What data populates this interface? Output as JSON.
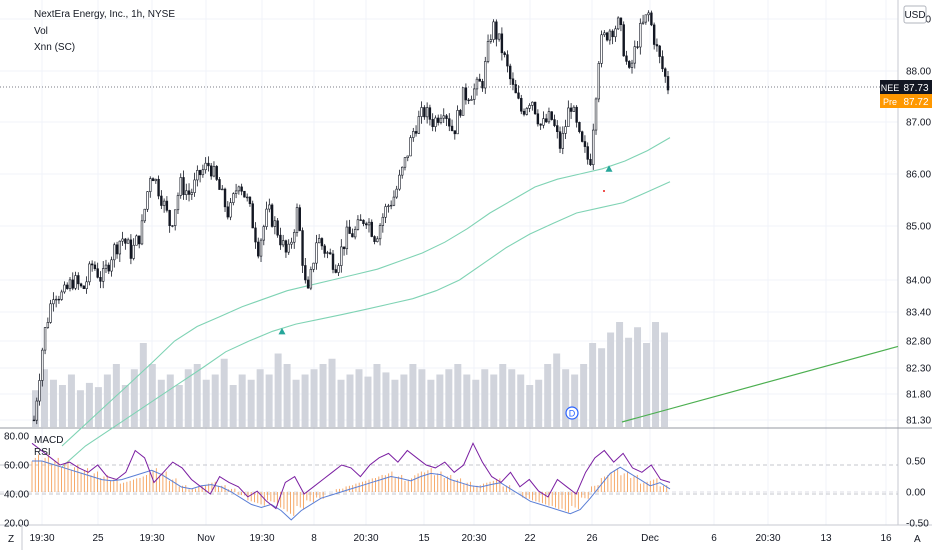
{
  "symbol": {
    "title": "NextEra Energy, Inc., 1h, NYSE",
    "indicator_1": "Vol",
    "indicator_2": "Xnn (SC)",
    "currency": "USD"
  },
  "price_labels": {
    "last_tag": "NEE",
    "last_value": "87.73",
    "pre_tag": "Pre",
    "pre_value": "87.72"
  },
  "sub_pane": {
    "label_1": "MACD",
    "label_2": "RSI",
    "left_ticks": [
      "80.00",
      "60.00",
      "40.00",
      "20.00"
    ],
    "right_ticks": [
      "0.50",
      "0.00",
      "-0.50"
    ]
  },
  "badges": {
    "dividend": "D",
    "z_button": "Z",
    "a_button": "A"
  },
  "colors": {
    "candle": "#131722",
    "ma": "#7fd3b4",
    "trendline": "#4caf50",
    "macd_hist": "#f5a05a",
    "macd_line": "#5b7fd6",
    "rsi_line": "#7b1fa2",
    "pre_tag": "#ff9800",
    "last_tag": "#131722",
    "volume": "#d1d4dc",
    "signal": "#26a69a"
  },
  "chart_data": {
    "type": "candlestick",
    "y_axis_ticks": [
      "89.00",
      "88.00",
      "87.00",
      "86.00",
      "85.00",
      "84.00",
      "83.40",
      "82.80",
      "82.30",
      "81.80",
      "81.30"
    ],
    "ylim": [
      81.3,
      89.3
    ],
    "x_axis_ticks": [
      "19:30",
      "25",
      "19:30",
      "Nov",
      "19:30",
      "8",
      "20:30",
      "15",
      "20:30",
      "22",
      "26",
      "Dec",
      "6",
      "20:30",
      "13",
      "16"
    ],
    "last_price": 87.73,
    "pre_market_price": 87.72,
    "close_path": [
      81.3,
      82.9,
      83.8,
      83.7,
      84.0,
      83.8,
      84.3,
      84.0,
      84.5,
      84.8,
      84.5,
      84.9,
      86.1,
      85.6,
      85.0,
      85.8,
      85.6,
      86.0,
      86.2,
      85.7,
      85.2,
      85.9,
      85.4,
      84.6,
      85.3,
      84.9,
      84.4,
      85.3,
      83.6,
      84.8,
      84.5,
      84.3,
      84.8,
      84.9,
      85.2,
      84.8,
      85.3,
      85.6,
      86.2,
      86.9,
      87.2,
      87.0,
      87.3,
      86.8,
      87.5,
      87.6,
      87.8,
      88.9,
      88.4,
      87.7,
      87.2,
      87.5,
      86.9,
      87.1,
      86.5,
      87.4,
      86.6,
      86.2,
      88.5,
      88.8,
      88.9,
      87.9,
      88.7,
      89.1,
      88.3,
      87.7
    ],
    "ma_fast": [
      80.8,
      81.2,
      81.6,
      82.0,
      82.4,
      82.8,
      83.1,
      83.3,
      83.5,
      83.65,
      83.8,
      83.9,
      84.0,
      84.1,
      84.2,
      84.35,
      84.5,
      84.7,
      84.95,
      85.25,
      85.5,
      85.75,
      85.9,
      86.0,
      86.1,
      86.25,
      86.45,
      86.7
    ],
    "ma_slow": [
      80.4,
      80.8,
      81.1,
      81.4,
      81.7,
      82.0,
      82.3,
      82.6,
      82.8,
      83.0,
      83.15,
      83.25,
      83.35,
      83.45,
      83.55,
      83.65,
      83.8,
      84.0,
      84.3,
      84.6,
      84.85,
      85.05,
      85.25,
      85.35,
      85.45,
      85.65,
      85.85
    ],
    "trendline": {
      "from": 81.3,
      "to": 82.7
    },
    "signals_up": [
      83.0,
      86.1
    ],
    "volume": [
      0.35,
      0.55,
      0.45,
      0.4,
      0.5,
      0.35,
      0.42,
      0.38,
      0.5,
      0.6,
      0.4,
      0.55,
      0.8,
      0.6,
      0.45,
      0.5,
      0.4,
      0.55,
      0.6,
      0.45,
      0.5,
      0.65,
      0.4,
      0.5,
      0.45,
      0.55,
      0.5,
      0.7,
      0.6,
      0.45,
      0.5,
      0.55,
      0.6,
      0.65,
      0.45,
      0.5,
      0.55,
      0.48,
      0.6,
      0.52,
      0.45,
      0.5,
      0.6,
      0.55,
      0.45,
      0.5,
      0.55,
      0.6,
      0.5,
      0.45,
      0.55,
      0.5,
      0.6,
      0.55,
      0.5,
      0.4,
      0.45,
      0.6,
      0.7,
      0.55,
      0.5,
      0.6,
      0.8,
      0.75,
      0.9,
      1.0,
      0.85,
      0.95,
      0.8,
      1.0,
      0.9
    ],
    "macd_hist": [
      0.55,
      0.55,
      0.5,
      0.45,
      0.4,
      0.35,
      0.3,
      0.25,
      0.2,
      0.15,
      0.2,
      0.25,
      0.35,
      0.3,
      0.2,
      0.1,
      0.05,
      0.1,
      0.15,
      0.1,
      0.05,
      -0.05,
      -0.15,
      -0.2,
      -0.15,
      -0.25,
      -0.35,
      -0.25,
      -0.15,
      -0.1,
      0.0,
      0.05,
      0.1,
      0.15,
      0.2,
      0.25,
      0.3,
      0.25,
      0.2,
      0.3,
      0.35,
      0.3,
      0.25,
      0.2,
      0.15,
      0.1,
      0.15,
      0.2,
      0.1,
      0.0,
      -0.1,
      -0.15,
      -0.2,
      -0.25,
      -0.3,
      -0.25,
      -0.1,
      0.1,
      0.25,
      0.35,
      0.3,
      0.25,
      0.15,
      0.2,
      0.1
    ],
    "macd_line": [
      0.5,
      0.5,
      0.45,
      0.4,
      0.35,
      0.3,
      0.25,
      0.2,
      0.18,
      0.2,
      0.25,
      0.3,
      0.35,
      0.28,
      0.18,
      0.08,
      0.05,
      0.1,
      0.12,
      0.08,
      0.0,
      -0.1,
      -0.2,
      -0.25,
      -0.2,
      -0.3,
      -0.45,
      -0.3,
      -0.2,
      -0.1,
      -0.05,
      0.0,
      0.05,
      0.1,
      0.15,
      0.2,
      0.25,
      0.22,
      0.18,
      0.25,
      0.3,
      0.28,
      0.2,
      0.15,
      0.1,
      0.08,
      0.12,
      0.15,
      0.05,
      -0.05,
      -0.15,
      -0.2,
      -0.25,
      -0.3,
      -0.35,
      -0.28,
      -0.1,
      0.1,
      0.3,
      0.4,
      0.3,
      0.2,
      0.1,
      0.15,
      0.05
    ],
    "rsi": [
      75,
      70,
      65,
      60,
      62,
      58,
      55,
      60,
      52,
      50,
      55,
      70,
      65,
      48,
      55,
      62,
      58,
      50,
      45,
      40,
      52,
      48,
      45,
      38,
      42,
      35,
      30,
      48,
      52,
      40,
      45,
      50,
      55,
      60,
      58,
      52,
      60,
      65,
      68,
      62,
      70,
      65,
      60,
      58,
      62,
      55,
      60,
      75,
      62,
      52,
      48,
      55,
      45,
      50,
      42,
      38,
      50,
      45,
      40,
      55,
      65,
      70,
      62,
      68,
      58,
      55,
      60,
      50,
      48
    ],
    "rsi_ticks": [
      80,
      60,
      40,
      20
    ],
    "macd_ticks": [
      0.5,
      0.0,
      -0.5
    ]
  }
}
